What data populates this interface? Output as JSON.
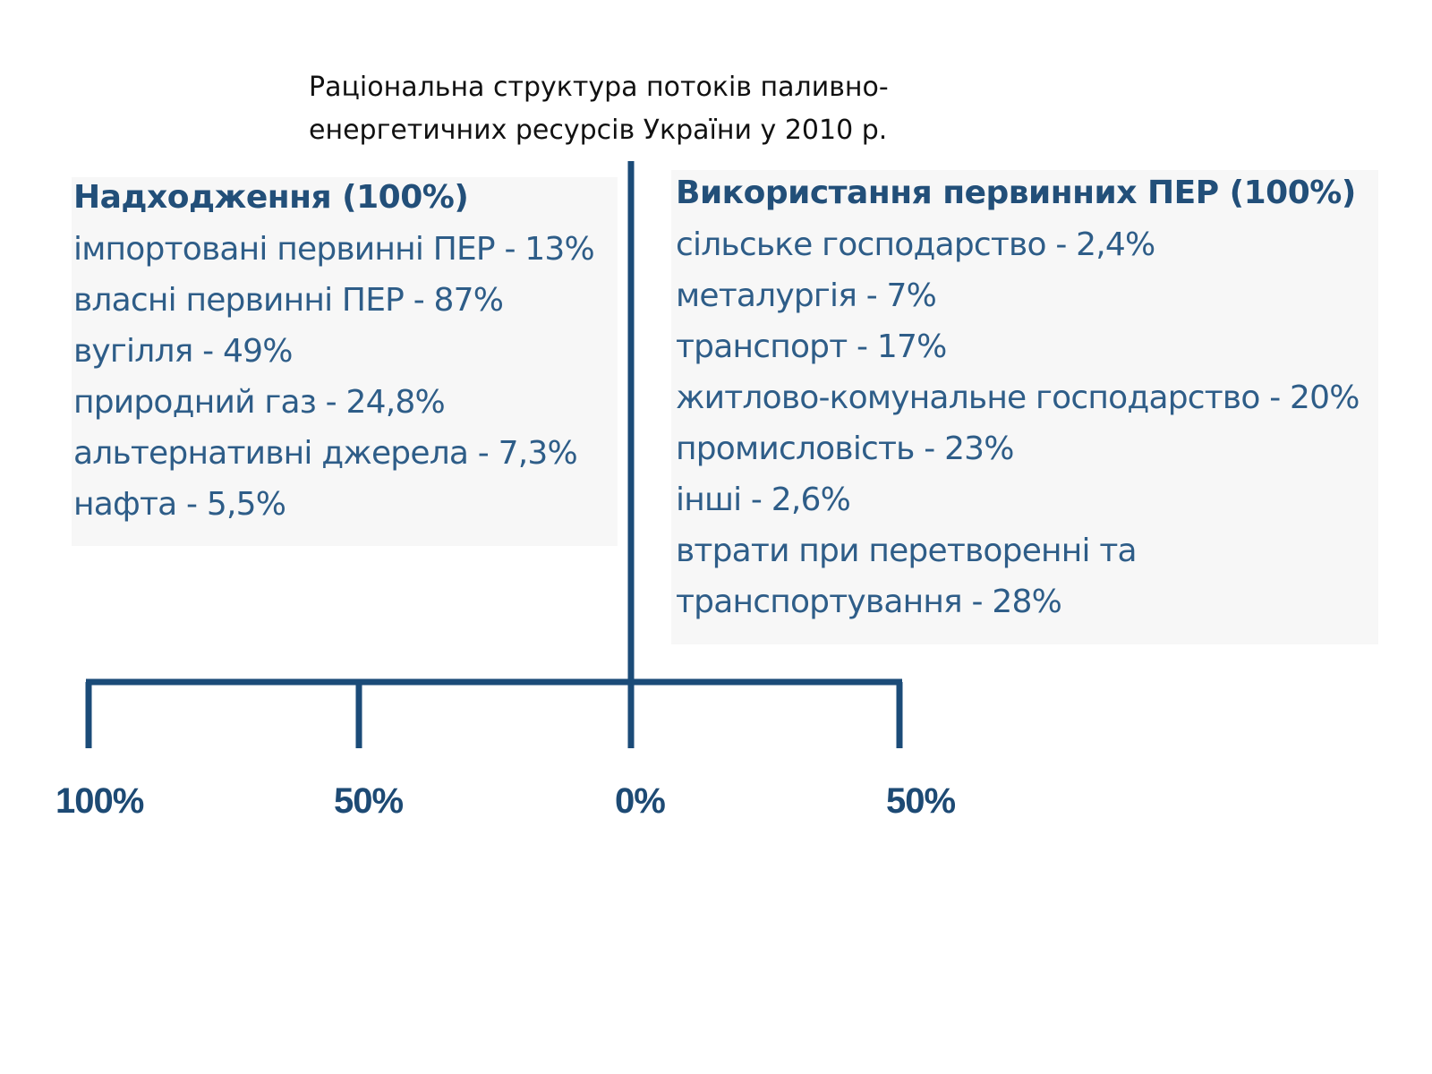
{
  "title": {
    "line1": "Раціональна структура потоків паливно-",
    "line2": "енергетичних ресурсів України у 2010 р."
  },
  "left": {
    "heading": "Надходження (100%)",
    "items": [
      "імпортовані первинні ПЕР - 13%",
      "власні первинні ПЕР - 87%",
      "вугілля - 49%",
      "природний газ - 24,8%",
      "альтернативні джерела - 7,3%",
      "нафта - 5,5%"
    ]
  },
  "right": {
    "heading": "Використання первинних ПЕР (100%)",
    "items": [
      "сільське господарство - 2,4%",
      "металургія - 7%",
      "транспорт - 17%",
      "житлово-комунальне господарство - 20%",
      "промисловість - 23%",
      "інші - 2,6%",
      "втрати при перетворенні та",
      "транспортування - 28%"
    ]
  },
  "scale": {
    "labels": [
      "100%",
      "50%",
      "0%",
      "50%"
    ]
  },
  "colors": {
    "axis": "#1b4b78",
    "heading": "#224f79",
    "item": "#2e5d88",
    "tick_label": "#1d4a74",
    "title": "#111111"
  }
}
